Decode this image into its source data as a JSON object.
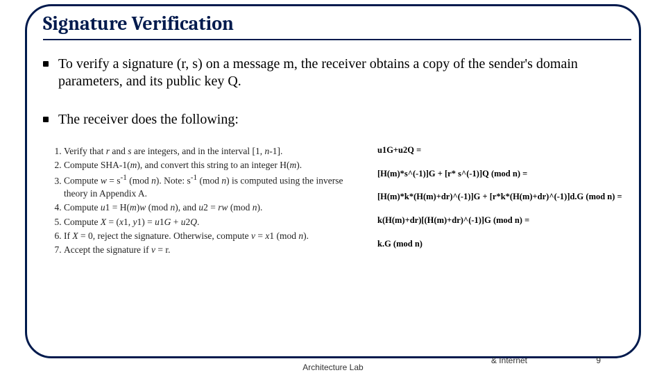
{
  "title": "Signature Verification",
  "bullets": {
    "b1": "To verify a signature (r, s) on a message m, the receiver obtains a copy of the sender's domain parameters, and its public key Q.",
    "b2": "The receiver does the following:"
  },
  "steps": {
    "s1a": "Verify that ",
    "s1b": " and ",
    "s1c": " are integers, and in the interval [1, ",
    "s1d": "-1].",
    "s2a": "Compute SHA-1(",
    "s2b": "), and convert this string to an integer H(",
    "s2c": ").",
    "s3a": "Compute ",
    "s3b": " = s",
    "s3c": " (mod ",
    "s3d": "). Note: s",
    "s3e": " (mod ",
    "s3f": ") is computed using the inverse theory in Appendix A.",
    "s4a": "Compute ",
    "s4b": "1 = H(",
    "s4c": ")",
    "s4d": " (mod ",
    "s4e": "), and ",
    "s4f": "2 = ",
    "s4g": " (mod ",
    "s4h": ").",
    "s5a": "Compute ",
    "s5b": " = (",
    "s5c": "1, ",
    "s5d": "1) = ",
    "s5e": "1",
    "s5f": " + ",
    "s5g": "2",
    "s5h": ".",
    "s6a": "If ",
    "s6b": " = 0, reject the signature. Otherwise, compute ",
    "s6c": " = ",
    "s6d": "1 (mod ",
    "s6e": ").",
    "s7a": "Accept the signature if ",
    "s7b": " = r."
  },
  "italics": {
    "r": "r",
    "s": "s",
    "n": "n",
    "m": "m",
    "w": "w",
    "u": "u",
    "rw": "rw",
    "X": "X",
    "x": "x",
    "y": "y",
    "G": "G",
    "Q": "Q",
    "v": "v"
  },
  "sup": {
    "neg1": "-1"
  },
  "deriv": {
    "d1": "u1G+u2Q =",
    "d2": "[H(m)*s^(-1)]G + [r* s^(-1)]Q  (mod n) =",
    "d3": "[H(m)*k*(H(m)+dr)^(-1)]G + [r*k*(H(m)+dr)^(-1)]d.G (mod n) =",
    "d4": "k(H(m)+dr)[(H(m)+dr)^(-1)]G  (mod n) =",
    "d5": "k.G (mod n)"
  },
  "footer": {
    "center": "Architecture Lab",
    "right1": "& Internet",
    "page": "9"
  },
  "colors": {
    "frame": "#001a4d",
    "title": "#001a4d",
    "text": "#000000",
    "bg": "#ffffff"
  }
}
